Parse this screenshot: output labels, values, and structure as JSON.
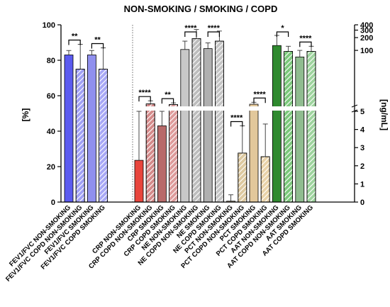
{
  "chart_data": {
    "type": "bar",
    "title": "NON-SMOKING / SMOKING / COPD",
    "ylabel_left": "[%]",
    "ylabel_right": "[ng/mL]",
    "left_axis": {
      "ylim": [
        0,
        100
      ],
      "ticks": [
        "0",
        "20",
        "40",
        "60",
        "80",
        "100"
      ]
    },
    "right_axis": {
      "lower_range": [
        0,
        5
      ],
      "upper_range": [
        5,
        400
      ],
      "lower_ticks": [
        "0",
        "1",
        "2",
        "3",
        "4",
        "5"
      ],
      "upper_ticks": [
        "100",
        "200",
        "300",
        "400"
      ]
    },
    "categories": [
      "FEV1/FVC NON-SMOKING",
      "FEV1/FVC COPD NON-SMOKING",
      "FEV1/FVC SMOKING",
      "FEV1/FVC COPD SMOKING",
      "CRP NON-SMOKING",
      "CRP COPD NON-SMOKING",
      "CRP SMOKING",
      "CRP COPD SMOKING",
      "NE NON-SMOKING",
      "NE COPD NON-SMOKING",
      "NE SMOKING",
      "NE COPD SMOKING",
      "PCT NON-SMOKING",
      "PCT COPD NON-SMOKING",
      "PCT SMOKING",
      "PCT COPD SMOKING",
      "AAT NON-SMOKING",
      "AAT COPD NON-SMOKING",
      "AAT SMOKING",
      "AAT COPD SMOKING"
    ],
    "bars": [
      {
        "axis": "left",
        "value": 83,
        "error": 2.5,
        "fill": "#5b5bf0",
        "hatched": false
      },
      {
        "axis": "left",
        "value": 75,
        "error": 14,
        "fill": "#a0a0f5",
        "hatched": true
      },
      {
        "axis": "left",
        "value": 83,
        "error": 2.5,
        "fill": "#9090ee",
        "hatched": false
      },
      {
        "axis": "left",
        "value": 75,
        "error": 12,
        "fill": "#a8a8f5",
        "hatched": true
      },
      {
        "axis": "right_lower",
        "value": 2.3,
        "error": 2.7,
        "fill": "#e8453c",
        "hatched": false
      },
      {
        "axis": "right_lower",
        "value": 5.5,
        "error": 1,
        "fill": "#d48a8a",
        "hatched": true
      },
      {
        "axis": "right_lower",
        "value": 4.2,
        "error": 0.8,
        "fill": "#b86a6a",
        "hatched": false
      },
      {
        "axis": "right_lower",
        "value": 5.3,
        "error": 0.5,
        "fill": "#dd9b9b",
        "hatched": true
      },
      {
        "axis": "right_upper",
        "value": 105,
        "error": 60,
        "fill": "#c8c8c8",
        "hatched": false
      },
      {
        "axis": "right_upper",
        "value": 190,
        "error": 120,
        "fill": "#bdbdbd",
        "hatched": true
      },
      {
        "axis": "right_upper",
        "value": 110,
        "error": 40,
        "fill": "#b0b0b0",
        "hatched": false
      },
      {
        "axis": "right_upper",
        "value": 165,
        "error": 120,
        "fill": "#c4c4c4",
        "hatched": true
      },
      {
        "axis": "right_lower",
        "value": 0.05,
        "error": 0.35,
        "fill": "#e0cca0",
        "hatched": false
      },
      {
        "axis": "right_lower",
        "value": 2.7,
        "error": 1.5,
        "fill": "#ddc9a0",
        "hatched": true
      },
      {
        "axis": "right_lower",
        "value": 5.4,
        "error": 0.6,
        "fill": "#e2c89b",
        "hatched": false
      },
      {
        "axis": "right_lower",
        "value": 2.5,
        "error": 1.8,
        "fill": "#e8d2a8",
        "hatched": true
      },
      {
        "axis": "right_upper",
        "value": 130,
        "error": 95,
        "fill": "#2f8a2f",
        "hatched": false
      },
      {
        "axis": "right_upper",
        "value": 95,
        "error": 30,
        "fill": "#7cc87c",
        "hatched": true
      },
      {
        "axis": "right_upper",
        "value": 70,
        "error": 30,
        "fill": "#8fbc8f",
        "hatched": false
      },
      {
        "axis": "right_upper",
        "value": 95,
        "error": 30,
        "fill": "#9ed49e",
        "hatched": true
      }
    ],
    "significance": [
      {
        "from": 0,
        "to": 1,
        "label": "**"
      },
      {
        "from": 2,
        "to": 3,
        "label": "**"
      },
      {
        "from": 4,
        "to": 5,
        "label": "****"
      },
      {
        "from": 6,
        "to": 7,
        "label": "**"
      },
      {
        "from": 8,
        "to": 9,
        "label": "****"
      },
      {
        "from": 10,
        "to": 11,
        "label": "****"
      },
      {
        "from": 12,
        "to": 13,
        "label": "****"
      },
      {
        "from": 14,
        "to": 15,
        "label": "****"
      },
      {
        "from": 16,
        "to": 17,
        "label": "*"
      },
      {
        "from": 18,
        "to": 19,
        "label": "****"
      }
    ],
    "grid": false,
    "legend": "none"
  }
}
